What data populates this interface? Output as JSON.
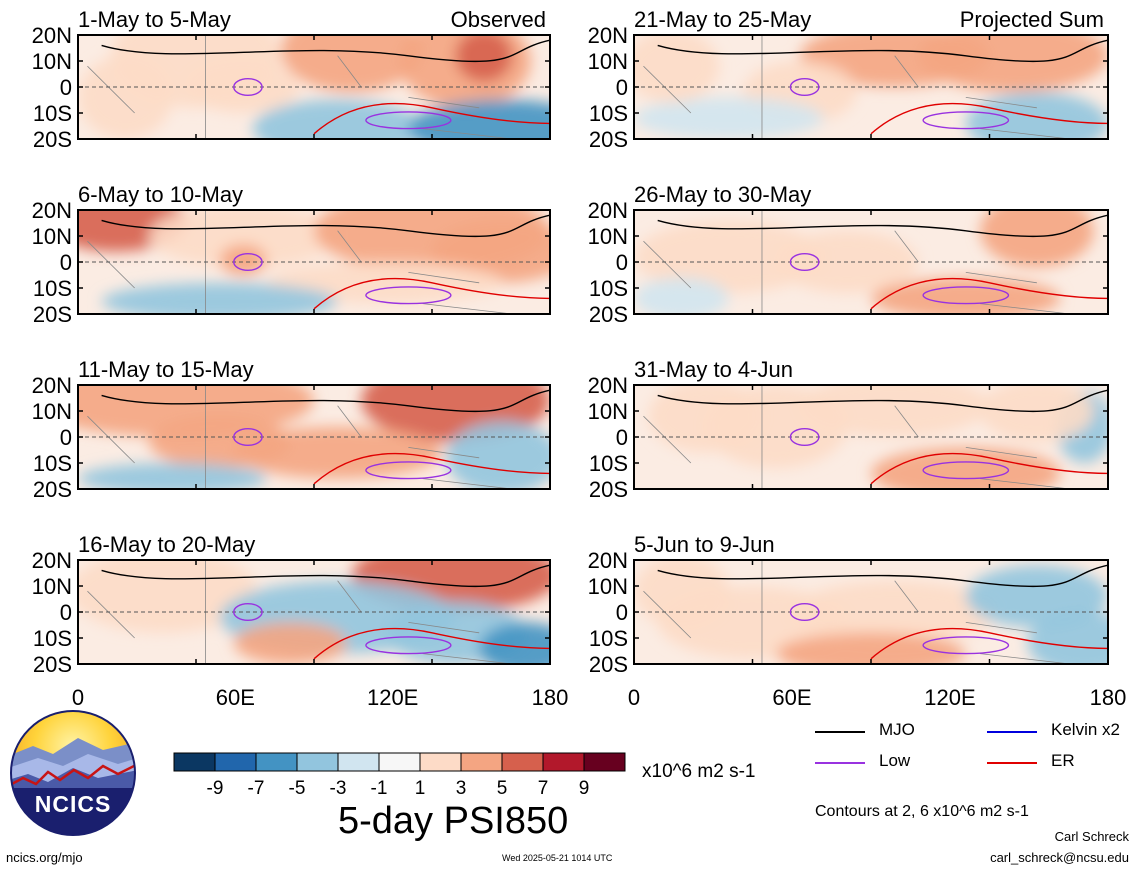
{
  "panels": [
    {
      "title": "1-May to 5-May",
      "label": "Observed"
    },
    {
      "title": "6-May to 10-May",
      "label": ""
    },
    {
      "title": "11-May to 15-May",
      "label": ""
    },
    {
      "title": "16-May to 20-May",
      "label": ""
    },
    {
      "title": "21-May to 25-May",
      "label": "Projected Sum"
    },
    {
      "title": "26-May to 30-May",
      "label": ""
    },
    {
      "title": "31-May to 4-Jun",
      "label": ""
    },
    {
      "title": "5-Jun to 9-Jun",
      "label": ""
    }
  ],
  "chart_data": {
    "type": "heatmap",
    "title": "5-day PSI850",
    "units": "x10^6 m2 s-1",
    "y_ticks": [
      "20N",
      "10N",
      "0",
      "10S",
      "20S"
    ],
    "x_ticks": [
      "0",
      "60E",
      "120E",
      "180"
    ],
    "colorbar": {
      "labels": [
        "-9",
        "-7",
        "-5",
        "-3",
        "-1",
        "1",
        "3",
        "5",
        "7",
        "9"
      ],
      "colors": [
        "#0b3762",
        "#2166ac",
        "#4393c3",
        "#92c5de",
        "#d1e5f0",
        "#f7f7f7",
        "#fddbc7",
        "#f4a582",
        "#d6604d",
        "#b2182b",
        "#67001f"
      ]
    },
    "legend": [
      {
        "name": "MJO",
        "color": "#000000"
      },
      {
        "name": "Kelvin x2",
        "color": "#0000dd"
      },
      {
        "name": "Low",
        "color": "#9932e0"
      },
      {
        "name": "ER",
        "color": "#e00000"
      }
    ],
    "contour_note": "Contours at 2, 6 x10^6 m2 s-1",
    "grid": false
  },
  "footer": {
    "logo_text": "NCICS",
    "left": "ncics.org/mjo",
    "timestamp": "Wed 2025-05-21 1014 UTC",
    "author": "Carl Schreck",
    "email": "carl_schreck@ncsu.edu"
  }
}
